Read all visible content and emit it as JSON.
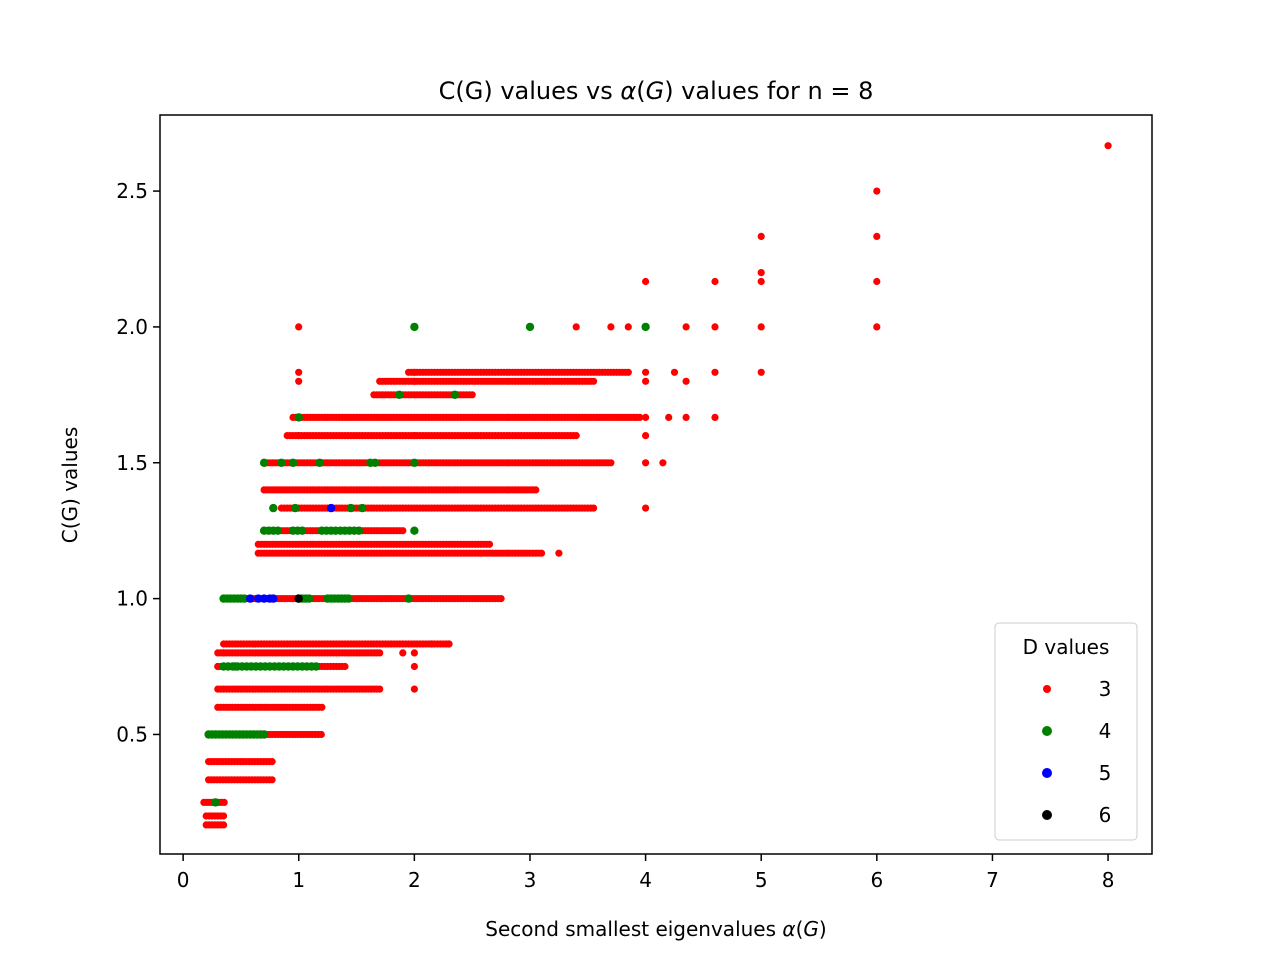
{
  "chart_data": {
    "type": "scatter",
    "title_parts": {
      "pre": "C(G) values vs ",
      "alpha": "α",
      "paren_open": "(",
      "g": "G",
      "post": ") values for n = 8"
    },
    "title": "C(G) values vs α(G) values for n = 8",
    "xlabel_parts": {
      "pre": "Second smallest eigenvalues ",
      "alpha": "α",
      "paren_open": "(",
      "g": "G",
      "post": ")"
    },
    "xlabel": "Second smallest eigenvalues α(G)",
    "ylabel": "C(G) values",
    "xlim": [
      -0.2,
      8.38
    ],
    "ylim": [
      0.06,
      2.78
    ],
    "xticks": [
      0,
      1,
      2,
      3,
      4,
      5,
      6,
      7,
      8
    ],
    "yticks": [
      0.5,
      1.0,
      1.5,
      2.0,
      2.5
    ],
    "ytick_labels": [
      "0.5",
      "1.0",
      "1.5",
      "2.0",
      "2.5"
    ],
    "grid": false,
    "legend": {
      "title": "D values",
      "position": "bottom-right"
    },
    "series": [
      {
        "name": "3",
        "color": "#ff0000",
        "segments": [
          {
            "y": 0.167,
            "xmin": 0.2,
            "xmax": 0.37,
            "step": 0.025
          },
          {
            "y": 0.2,
            "xmin": 0.2,
            "xmax": 0.37,
            "step": 0.025
          },
          {
            "y": 0.25,
            "xmin": 0.18,
            "xmax": 0.37,
            "step": 0.025
          },
          {
            "y": 0.333,
            "xmin": 0.22,
            "xmax": 0.78,
            "step": 0.025
          },
          {
            "y": 0.4,
            "xmin": 0.22,
            "xmax": 0.78,
            "step": 0.025
          },
          {
            "y": 0.5,
            "xmin": 0.22,
            "xmax": 1.2,
            "step": 0.025
          },
          {
            "y": 0.6,
            "xmin": 0.3,
            "xmax": 1.2,
            "step": 0.025
          },
          {
            "y": 0.667,
            "xmin": 0.3,
            "xmax": 1.7,
            "step": 0.025
          },
          {
            "y": 0.75,
            "xmin": 0.3,
            "xmax": 1.4,
            "step": 0.025
          },
          {
            "y": 0.8,
            "xmin": 0.3,
            "xmax": 1.7,
            "step": 0.025
          },
          {
            "y": 0.833,
            "xmin": 0.35,
            "xmax": 2.3,
            "step": 0.025
          },
          {
            "y": 1.0,
            "xmin": 0.4,
            "xmax": 2.75,
            "step": 0.025
          },
          {
            "y": 1.167,
            "xmin": 0.65,
            "xmax": 3.1,
            "step": 0.025
          },
          {
            "y": 1.2,
            "xmin": 0.65,
            "xmax": 2.65,
            "step": 0.025
          },
          {
            "y": 1.25,
            "xmin": 0.7,
            "xmax": 1.9,
            "step": 0.025
          },
          {
            "y": 1.333,
            "xmin": 0.85,
            "xmax": 3.55,
            "step": 0.025
          },
          {
            "y": 1.4,
            "xmin": 0.7,
            "xmax": 3.05,
            "step": 0.025
          },
          {
            "y": 1.5,
            "xmin": 0.7,
            "xmax": 3.7,
            "step": 0.025
          },
          {
            "y": 1.6,
            "xmin": 0.9,
            "xmax": 3.4,
            "step": 0.025
          },
          {
            "y": 1.667,
            "xmin": 0.95,
            "xmax": 3.95,
            "step": 0.025
          },
          {
            "y": 1.75,
            "xmin": 1.65,
            "xmax": 2.5,
            "step": 0.025
          },
          {
            "y": 1.8,
            "xmin": 1.7,
            "xmax": 3.55,
            "step": 0.025
          },
          {
            "y": 1.833,
            "xmin": 1.95,
            "xmax": 3.85,
            "step": 0.025
          }
        ],
        "points": [
          [
            1.0,
            2.0
          ],
          [
            2.0,
            2.0
          ],
          [
            3.4,
            2.0
          ],
          [
            3.7,
            2.0
          ],
          [
            3.85,
            2.0
          ],
          [
            4.0,
            2.0
          ],
          [
            4.35,
            2.0
          ],
          [
            4.6,
            2.0
          ],
          [
            5.0,
            2.0
          ],
          [
            6.0,
            2.0
          ],
          [
            8.0,
            2.667
          ],
          [
            6.0,
            2.5
          ],
          [
            5.0,
            2.333
          ],
          [
            6.0,
            2.333
          ],
          [
            5.0,
            2.2
          ],
          [
            4.0,
            2.167
          ],
          [
            4.6,
            2.167
          ],
          [
            5.0,
            2.167
          ],
          [
            6.0,
            2.167
          ],
          [
            4.0,
            1.833
          ],
          [
            4.25,
            1.833
          ],
          [
            4.6,
            1.833
          ],
          [
            5.0,
            1.833
          ],
          [
            4.0,
            1.8
          ],
          [
            4.35,
            1.8
          ],
          [
            4.0,
            1.667
          ],
          [
            4.2,
            1.667
          ],
          [
            4.35,
            1.667
          ],
          [
            4.6,
            1.667
          ],
          [
            4.0,
            1.6
          ],
          [
            4.0,
            1.5
          ],
          [
            4.15,
            1.5
          ],
          [
            4.0,
            1.333
          ],
          [
            3.25,
            1.167
          ],
          [
            2.0,
            0.667
          ],
          [
            2.15,
            0.833
          ],
          [
            2.3,
            0.833
          ],
          [
            1.0,
            1.833
          ],
          [
            1.0,
            1.8
          ],
          [
            1.0,
            1.667
          ],
          [
            1.0,
            1.6
          ],
          [
            1.2,
            1.5
          ],
          [
            2.0,
            1.5
          ],
          [
            2.0,
            1.6
          ],
          [
            2.0,
            1.8
          ],
          [
            2.0,
            1.833
          ],
          [
            0.35,
            0.8
          ],
          [
            0.3,
            0.75
          ],
          [
            2.0,
            0.8
          ],
          [
            2.0,
            0.75
          ],
          [
            1.9,
            0.8
          ]
        ]
      },
      {
        "name": "4",
        "color": "#008000",
        "segments": [
          {
            "y": 0.5,
            "xmin": 0.22,
            "xmax": 0.7,
            "step": 0.03
          },
          {
            "y": 0.75,
            "xmin": 0.35,
            "xmax": 1.15,
            "step": 0.04
          },
          {
            "y": 1.0,
            "xmin": 0.35,
            "xmax": 0.55,
            "step": 0.03
          },
          {
            "y": 1.0,
            "xmin": 1.0,
            "xmax": 1.1,
            "step": 0.03
          },
          {
            "y": 1.0,
            "xmin": 1.25,
            "xmax": 1.45,
            "step": 0.03
          },
          {
            "y": 1.25,
            "xmin": 1.2,
            "xmax": 1.55,
            "step": 0.04
          },
          {
            "y": 1.25,
            "xmin": 0.7,
            "xmax": 0.85,
            "step": 0.04
          },
          {
            "y": 1.25,
            "xmin": 0.95,
            "xmax": 1.05,
            "step": 0.04
          }
        ],
        "points": [
          [
            0.28,
            0.25
          ],
          [
            2.0,
            2.0
          ],
          [
            3.0,
            2.0
          ],
          [
            4.0,
            2.0
          ],
          [
            1.87,
            1.75
          ],
          [
            2.35,
            1.75
          ],
          [
            1.0,
            1.667
          ],
          [
            0.7,
            1.5
          ],
          [
            0.85,
            1.5
          ],
          [
            0.95,
            1.5
          ],
          [
            1.18,
            1.5
          ],
          [
            1.62,
            1.5
          ],
          [
            1.66,
            1.5
          ],
          [
            2.0,
            1.5
          ],
          [
            2.0,
            1.25
          ],
          [
            0.78,
            1.333
          ],
          [
            0.97,
            1.333
          ],
          [
            1.45,
            1.333
          ],
          [
            1.55,
            1.333
          ],
          [
            1.95,
            1.0
          ],
          [
            0.45,
            0.75
          ]
        ]
      },
      {
        "name": "5",
        "color": "#0000ff",
        "segments": [],
        "points": [
          [
            0.58,
            1.0
          ],
          [
            0.65,
            1.0
          ],
          [
            0.7,
            1.0
          ],
          [
            0.75,
            1.0
          ],
          [
            0.78,
            1.0
          ],
          [
            1.28,
            1.333
          ]
        ]
      },
      {
        "name": "6",
        "color": "#000000",
        "segments": [],
        "points": [
          [
            1.0,
            1.0
          ]
        ]
      }
    ]
  }
}
